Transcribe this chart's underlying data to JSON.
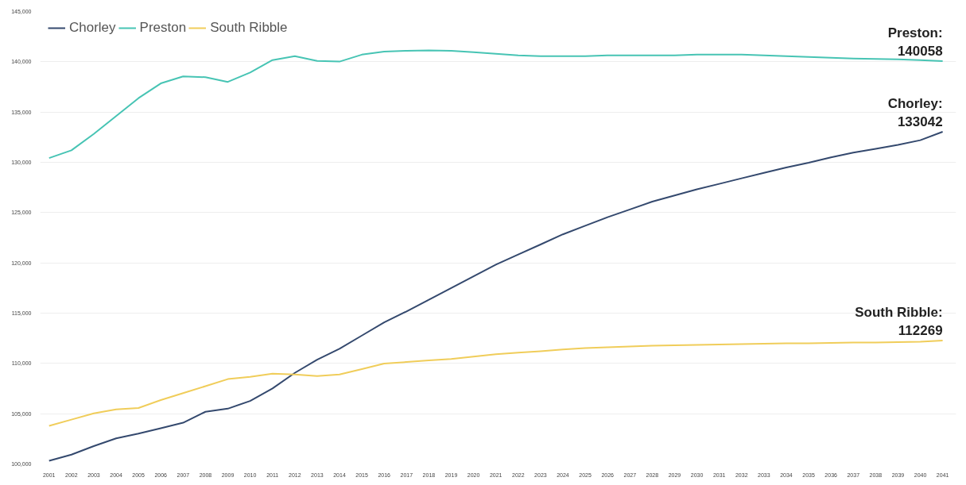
{
  "chart_data": {
    "type": "line",
    "x": [
      2001,
      2002,
      2003,
      2004,
      2005,
      2006,
      2007,
      2008,
      2009,
      2010,
      2011,
      2012,
      2013,
      2014,
      2015,
      2016,
      2017,
      2018,
      2019,
      2020,
      2021,
      2022,
      2023,
      2024,
      2025,
      2026,
      2027,
      2028,
      2029,
      2030,
      2031,
      2032,
      2033,
      2034,
      2035,
      2036,
      2037,
      2038,
      2039,
      2040,
      2041
    ],
    "series": [
      {
        "name": "Chorley",
        "color": "#34496e",
        "values": [
          100310,
          100930,
          101780,
          102550,
          103020,
          103560,
          104100,
          105190,
          105500,
          106270,
          107510,
          109060,
          110370,
          111460,
          112770,
          114090,
          115170,
          116330,
          117500,
          118660,
          119820,
          120830,
          121830,
          122840,
          123690,
          124540,
          125310,
          126090,
          126700,
          127320,
          127860,
          128410,
          128950,
          129490,
          129960,
          130500,
          130960,
          131350,
          131740,
          132200,
          133042
        ]
      },
      {
        "name": "Preston",
        "color": "#47c4b4",
        "values": [
          130420,
          131190,
          132820,
          134600,
          136380,
          137850,
          138550,
          138470,
          138000,
          138930,
          140170,
          140560,
          140090,
          140020,
          140710,
          141020,
          141100,
          141140,
          141100,
          140950,
          140790,
          140640,
          140560,
          140560,
          140560,
          140640,
          140640,
          140640,
          140640,
          140710,
          140710,
          140710,
          140640,
          140560,
          140480,
          140400,
          140330,
          140290,
          140250,
          140170,
          140058
        ]
      },
      {
        "name": "South Ribble",
        "color": "#f0cd5a",
        "values": [
          103790,
          104410,
          105030,
          105420,
          105570,
          106350,
          107040,
          107740,
          108440,
          108670,
          108980,
          108900,
          108750,
          108900,
          109440,
          109990,
          110140,
          110300,
          110450,
          110680,
          110920,
          111070,
          111220,
          111380,
          111530,
          111610,
          111690,
          111760,
          111800,
          111840,
          111880,
          111920,
          111960,
          112000,
          112000,
          112040,
          112080,
          112080,
          112110,
          112150,
          112269
        ]
      }
    ],
    "xlim": [
      2000.6,
      2041.6
    ],
    "xticks": [
      2001,
      2002,
      2003,
      2004,
      2005,
      2006,
      2007,
      2008,
      2009,
      2010,
      2011,
      2012,
      2013,
      2014,
      2015,
      2016,
      2017,
      2018,
      2019,
      2020,
      2021,
      2022,
      2023,
      2024,
      2025,
      2026,
      2027,
      2028,
      2029,
      2030,
      2031,
      2032,
      2033,
      2034,
      2035,
      2036,
      2037,
      2038,
      2039,
      2040,
      2041
    ],
    "ylim": [
      100000,
      145000
    ],
    "yticks": [
      {
        "value": 100000,
        "label": "100,000"
      },
      {
        "value": 105000,
        "label": "105,000"
      },
      {
        "value": 110000,
        "label": "110,000"
      },
      {
        "value": 115000,
        "label": "115,000"
      },
      {
        "value": 120000,
        "label": "120,000"
      },
      {
        "value": 125000,
        "label": "125,000"
      },
      {
        "value": 130000,
        "label": "130,000"
      },
      {
        "value": 135000,
        "label": "135,000"
      },
      {
        "value": 140000,
        "label": "140,000"
      },
      {
        "value": 145000,
        "label": "145,000"
      }
    ],
    "grid": "y",
    "legend": "top left",
    "line_style": "solid",
    "marker": "none",
    "annotations": [
      "Chorley:\n133042",
      "Preston:\n140058",
      "South Ribble:\n112269"
    ]
  }
}
